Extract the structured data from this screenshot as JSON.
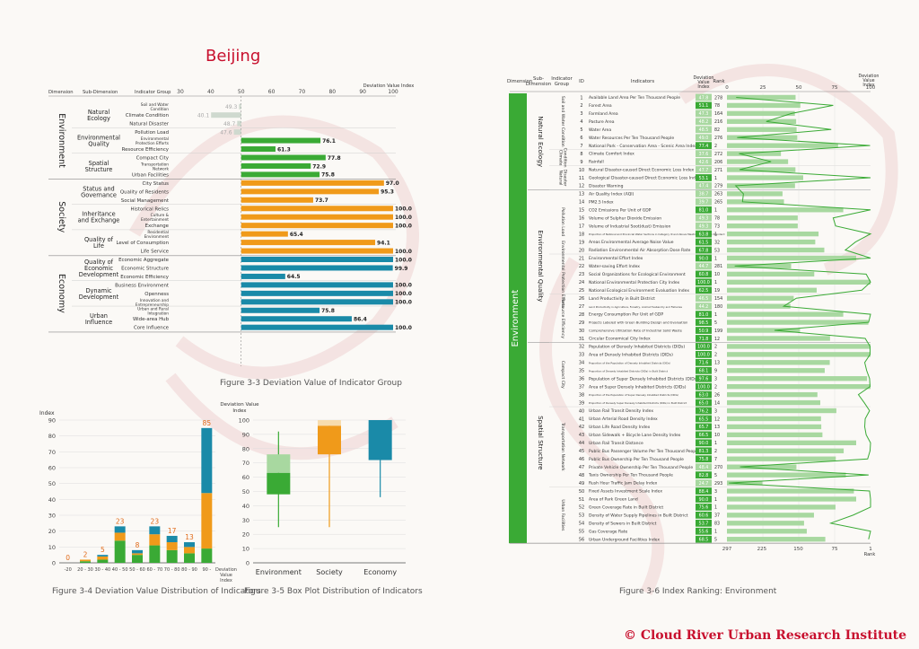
{
  "header": {
    "city_title": "Beijing"
  },
  "figures": {
    "fig33_caption": "Figure 3-3 Deviation Value of Indicator Group",
    "fig34_caption": "Figure 3-4 Deviation Value Distribution of Indicators",
    "fig35_caption": "Figure 3-5 Box Plot Distribution of Indicators",
    "fig36_caption": "Figure 3-6 Index Ranking: Environment"
  },
  "footer": {
    "copyright": "© Cloud River Urban Research Institute"
  },
  "colors": {
    "environment": "#3aaa35",
    "society": "#f09a1a",
    "economy": "#1a8aa8",
    "light_green": "#a8d8a0",
    "accent_red": "#c8102e"
  },
  "chart_data": [
    {
      "id": "fig33",
      "type": "bar",
      "headers": {
        "dimension": "Dimension",
        "sub_dimension": "Sub-Dimension",
        "indicator_group": "Indicator Group",
        "axis_title": "Deviation Value Index"
      },
      "xticks": [
        30,
        40,
        50,
        60,
        70,
        80,
        90,
        100
      ],
      "xlim": [
        30,
        100
      ],
      "dimensions": [
        {
          "name": "Environment",
          "color": "#3aaa35",
          "subs": [
            {
              "name": "Natural Ecology",
              "groups": [
                {
                  "name": "Soil and Water Condition",
                  "value": 49.3
                },
                {
                  "name": "Climate Condition",
                  "value": 40.1
                },
                {
                  "name": "Natural Disaster",
                  "value": 48.7
                }
              ]
            },
            {
              "name": "Environmental Quality",
              "groups": [
                {
                  "name": "Pollution Load",
                  "value": 47.6
                },
                {
                  "name": "Environmental Protection Efforts",
                  "value": 76.1
                },
                {
                  "name": "Resource Efficiency",
                  "value": 61.3
                }
              ]
            },
            {
              "name": "Spatial Structure",
              "groups": [
                {
                  "name": "Compact City",
                  "value": 77.8
                },
                {
                  "name": "Transportation Network",
                  "value": 72.9
                },
                {
                  "name": "Urban Facilities",
                  "value": 75.8
                }
              ]
            }
          ]
        },
        {
          "name": "Society",
          "color": "#f09a1a",
          "subs": [
            {
              "name": "Status and Governance",
              "groups": [
                {
                  "name": "City Status",
                  "value": 97.0
                },
                {
                  "name": "Quality of Residents",
                  "value": 95.3
                },
                {
                  "name": "Social Management",
                  "value": 73.7
                }
              ]
            },
            {
              "name": "Inheritance and Exchange",
              "groups": [
                {
                  "name": "Historical Relics",
                  "value": 100.0
                },
                {
                  "name": "Culture & Entertainment",
                  "value": 100.0
                },
                {
                  "name": "Exchange",
                  "value": 100.0
                }
              ]
            },
            {
              "name": "Quality of Life",
              "groups": [
                {
                  "name": "Residential Environment",
                  "value": 65.4
                },
                {
                  "name": "Level of Consumption",
                  "value": 94.1
                },
                {
                  "name": "Life Service",
                  "value": 100.0
                }
              ]
            }
          ]
        },
        {
          "name": "Economy",
          "color": "#1a8aa8",
          "subs": [
            {
              "name": "Quality of Economic Development",
              "groups": [
                {
                  "name": "Economic Aggregate",
                  "value": 100.0
                },
                {
                  "name": "Economic Structure",
                  "value": 99.9
                },
                {
                  "name": "Economic Efficiency",
                  "value": 64.5
                }
              ]
            },
            {
              "name": "Dynamic Development",
              "groups": [
                {
                  "name": "Business Environment",
                  "value": 100.0
                },
                {
                  "name": "Openness",
                  "value": 100.0
                },
                {
                  "name": "Innovation and Entrepreneurship",
                  "value": 100.0
                }
              ]
            },
            {
              "name": "Urban Influence",
              "groups": [
                {
                  "name": "Urban and Rural Integration",
                  "value": 75.8
                },
                {
                  "name": "Wide-area Hub",
                  "value": 86.4
                },
                {
                  "name": "Core Influence",
                  "value": 100.0
                }
              ]
            }
          ]
        }
      ]
    },
    {
      "id": "fig34",
      "type": "bar",
      "stacked": true,
      "ylabel": "Index",
      "xlabel": "Deviation Value Index",
      "ylim": [
        0,
        90
      ],
      "yticks": [
        0,
        10,
        20,
        30,
        40,
        50,
        60,
        70,
        80,
        90
      ],
      "categories": [
        "-20",
        "20 - 30",
        "30 - 40",
        "40 - 50",
        "50 - 60",
        "60 - 70",
        "70 - 80",
        "80 - 90",
        "90 -"
      ],
      "totals": [
        0,
        2,
        5,
        23,
        8,
        23,
        17,
        13,
        85
      ],
      "series": [
        {
          "color": "#3aaa35",
          "values": [
            0,
            1,
            2,
            14,
            5,
            11,
            8,
            6,
            9
          ]
        },
        {
          "color": "#f09a1a",
          "values": [
            0,
            1,
            2,
            5,
            1,
            7,
            5,
            4,
            35
          ]
        },
        {
          "color": "#1a8aa8",
          "values": [
            0,
            0,
            1,
            4,
            2,
            5,
            4,
            3,
            41
          ]
        }
      ]
    },
    {
      "id": "fig35",
      "type": "box",
      "ylabel": "Deviation Value Index",
      "ylim": [
        0,
        100
      ],
      "yticks": [
        0,
        10,
        20,
        30,
        40,
        50,
        60,
        70,
        80,
        90,
        100
      ],
      "categories": [
        "Environment",
        "Society",
        "Economy"
      ],
      "boxes": [
        {
          "name": "Environment",
          "color": "#3aaa35",
          "light": "#a8d8a0",
          "min": 25,
          "q1": 48,
          "median": 63,
          "q3": 76,
          "max": 92
        },
        {
          "name": "Society",
          "color": "#f09a1a",
          "light": "#f7dcae",
          "min": 25,
          "q1": 76,
          "median": 96,
          "q3": 100,
          "max": 100
        },
        {
          "name": "Economy",
          "color": "#1a8aa8",
          "light": "#9fd0dc",
          "min": 46,
          "q1": 72,
          "median": 100,
          "q3": 100,
          "max": 100
        }
      ]
    },
    {
      "id": "fig36",
      "type": "table",
      "headers": {
        "dimension": "Dimension",
        "sub_dimension": "Sub-Dimension",
        "indicator_group": "Indicator Group",
        "id": "ID",
        "indicators": "Indicators",
        "value": "Deviation Value Index",
        "rank": "Rank",
        "axis_title": "Deviation Value Index",
        "rank_axis": "Rank"
      },
      "dimension": "Environment",
      "top_ticks": [
        0,
        25,
        50,
        75,
        100
      ],
      "bottom_ticks": [
        297,
        225,
        150,
        75,
        1
      ],
      "subs": [
        {
          "name": "Natural Ecology",
          "groups": [
            {
              "name": "Soil and Water Condition",
              "start": 1,
              "end": 7
            },
            {
              "name": "Climate Condition",
              "start": 8,
              "end": 9
            },
            {
              "name": "Natural Disaster",
              "start": 10,
              "end": 12
            }
          ]
        },
        {
          "name": "Environmental Quality",
          "groups": [
            {
              "name": "Pollution Load",
              "start": 13,
              "end": 20
            },
            {
              "name": "Environmental Protection Efforts",
              "start": 21,
              "end": 25
            },
            {
              "name": "Resource Efficiency",
              "start": 26,
              "end": 31
            }
          ]
        },
        {
          "name": "Spatial Structure",
          "groups": [
            {
              "name": "Compact City",
              "start": 32,
              "end": 39
            },
            {
              "name": "Transportation Network",
              "start": 40,
              "end": 49
            },
            {
              "name": "Urban Facilities",
              "start": 50,
              "end": 56
            }
          ]
        }
      ],
      "rows": [
        {
          "id": 1,
          "name": "Available Land Area Per Ten Thousand People",
          "value": 47.8,
          "rank": 278
        },
        {
          "id": 2,
          "name": "Forest Area",
          "value": 51.1,
          "rank": 78
        },
        {
          "id": 3,
          "name": "Farmland Area",
          "value": 47.3,
          "rank": 164
        },
        {
          "id": 4,
          "name": "Pasture Area",
          "value": 48.2,
          "rank": 216
        },
        {
          "id": 5,
          "name": "Water Area",
          "value": 48.5,
          "rank": 82
        },
        {
          "id": 6,
          "name": "Water Resources Per Ten Thousand People",
          "value": 49.0,
          "rank": 276
        },
        {
          "id": 7,
          "name": "National Park - Conservation Area - Scenic Area Index",
          "value": 77.4,
          "rank": 2
        },
        {
          "id": 8,
          "name": "Climate Comfort Index",
          "value": 37.6,
          "rank": 272
        },
        {
          "id": 9,
          "name": "Rainfall",
          "value": 42.6,
          "rank": 206
        },
        {
          "id": 10,
          "name": "Natural Disaster-caused Direct Economic Loss Index",
          "value": 47.7,
          "rank": 271
        },
        {
          "id": 11,
          "name": "Geological Disaster-caused Direct Economic Loss Index",
          "value": 53.1,
          "rank": 1
        },
        {
          "id": 12,
          "name": "Disaster Warning",
          "value": 47.4,
          "rank": 279
        },
        {
          "id": 13,
          "name": "Air Quality Index (AQI)",
          "value": 38.7,
          "rank": 263
        },
        {
          "id": 14,
          "name": "PM2.5 Index",
          "value": 39.7,
          "rank": 265
        },
        {
          "id": 15,
          "name": "CO2 Emissions Per Unit of GDP",
          "value": 81.0,
          "rank": 1
        },
        {
          "id": 16,
          "name": "Volume of Sulphur Dioxide Emission",
          "value": 49.3,
          "rank": 78
        },
        {
          "id": 17,
          "name": "Volume of Industrial Soot(dust) Emission",
          "value": 49.3,
          "rank": 73
        },
        {
          "id": 18,
          "name": "Proportion of National and Provincial Water Sections in Category III and Above Meeting the Quality Standard",
          "value": 63.8,
          "rank": 1
        },
        {
          "id": 19,
          "name": "Areas Environmental Average Noise Value",
          "value": 61.5,
          "rank": 32
        },
        {
          "id": 20,
          "name": "Radiation Environmental Air Absorption Dose Rate",
          "value": 67.8,
          "rank": 53
        },
        {
          "id": 21,
          "name": "Environmental Effort Index",
          "value": 90.0,
          "rank": 1
        },
        {
          "id": 22,
          "name": "Water-saving Effort Index",
          "value": 44.7,
          "rank": 281
        },
        {
          "id": 23,
          "name": "Social Organizations for Ecological Environment",
          "value": 60.8,
          "rank": 10
        },
        {
          "id": 24,
          "name": "National Environmental Protection City Index",
          "value": 100.0,
          "rank": 1
        },
        {
          "id": 25,
          "name": "National Ecological Environment Evaluation Index",
          "value": 62.5,
          "rank": 19
        },
        {
          "id": 26,
          "name": "Land Productivity in Built District",
          "value": 46.5,
          "rank": 154
        },
        {
          "id": 27,
          "name": "Land Productivity in Agriculture, Forestry, Animal Husbandry and Fisheries",
          "value": 44.2,
          "rank": 180
        },
        {
          "id": 28,
          "name": "Energy Consumption Per Unit of GDP",
          "value": 81.0,
          "rank": 1
        },
        {
          "id": 29,
          "name": "Projects Labeled with Green Building Design and Evaluation",
          "value": 98.5,
          "rank": 5
        },
        {
          "id": 30,
          "name": "Comprehensive Utilization Rate of Industrial Solid Waste",
          "value": 50.9,
          "rank": 199
        },
        {
          "id": 31,
          "name": "Circular Economical City Index",
          "value": 71.8,
          "rank": 12
        },
        {
          "id": 32,
          "name": "Population of Densely Inhabited Districts (DIDs)",
          "value": 100.0,
          "rank": 2
        },
        {
          "id": 33,
          "name": "Area of Densely Inhabited Districts (DIDs)",
          "value": 100.0,
          "rank": 2
        },
        {
          "id": 34,
          "name": "Proportion of the Population of Densely Inhabited Districts (DIDs)",
          "value": 71.6,
          "rank": 13
        },
        {
          "id": 35,
          "name": "Proportion of Densely Inhabited Districts (DIDs) in Built District",
          "value": 68.1,
          "rank": 9
        },
        {
          "id": 36,
          "name": "Population of Super Densely Inhabited Districts (DIDs)",
          "value": 97.6,
          "rank": 3
        },
        {
          "id": 37,
          "name": "Area of Super Densely Inhabited Districts (DIDs)",
          "value": 100.0,
          "rank": 2
        },
        {
          "id": 38,
          "name": "Proportion of the Population of Super Densely Inhabited Districts (DIDs)",
          "value": 63.0,
          "rank": 26
        },
        {
          "id": 39,
          "name": "Proportion of Densely Super Densely Inhabited Districts (DIDs) in Built District",
          "value": 65.0,
          "rank": 14
        },
        {
          "id": 40,
          "name": "Urban Rail Transit Density Index",
          "value": 76.2,
          "rank": 3
        },
        {
          "id": 41,
          "name": "Urban Arterial Road Density Index",
          "value": 65.5,
          "rank": 12
        },
        {
          "id": 42,
          "name": "Urban Life Road Density Index",
          "value": 65.7,
          "rank": 13
        },
        {
          "id": 43,
          "name": "Urban Sidewalk + Bicycle Lane Density Index",
          "value": 66.5,
          "rank": 10
        },
        {
          "id": 44,
          "name": "Urban Rail Transit Distance",
          "value": 90.0,
          "rank": 1
        },
        {
          "id": 45,
          "name": "Public Bus Passenger Volume Per Ten Thousand People",
          "value": 81.3,
          "rank": 2
        },
        {
          "id": 46,
          "name": "Public Bus Ownership Per Ten Thousand People",
          "value": 75.8,
          "rank": 7
        },
        {
          "id": 47,
          "name": "Private Vehicle Ownership Per Ten Thousand People",
          "value": 48.4,
          "rank": 270
        },
        {
          "id": 48,
          "name": "Taxis Ownership Per Ten Thousand People",
          "value": 82.8,
          "rank": 5
        },
        {
          "id": 49,
          "name": "Rush Hour Traffic Jam Delay Index",
          "value": 24.7,
          "rank": 293
        },
        {
          "id": 50,
          "name": "Fixed Assets Investment Scale Index",
          "value": 88.4,
          "rank": 3
        },
        {
          "id": 51,
          "name": "Area of Park Green Land",
          "value": 90.0,
          "rank": 1
        },
        {
          "id": 52,
          "name": "Green Coverage Rate in Built District",
          "value": 75.6,
          "rank": 1
        },
        {
          "id": 53,
          "name": "Density of Water Supply Pipelines in Built District",
          "value": 60.6,
          "rank": 37
        },
        {
          "id": 54,
          "name": "Density of Sewers in Built District",
          "value": 53.7,
          "rank": 83
        },
        {
          "id": 55,
          "name": "Gas Coverage Rate",
          "value": 55.6,
          "rank": 1
        },
        {
          "id": 56,
          "name": "Urban Underground Facilities Index",
          "value": 68.5,
          "rank": 5
        }
      ]
    }
  ]
}
